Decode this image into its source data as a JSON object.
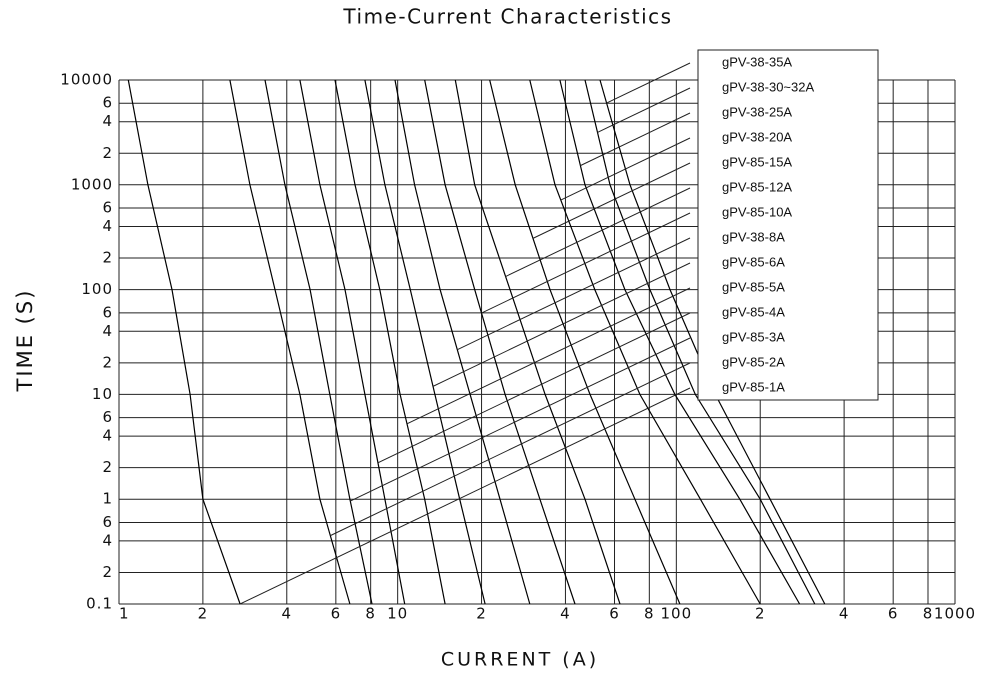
{
  "chart_data": {
    "type": "line",
    "title": "Time-Current Characteristics",
    "x_label": "CURRENT (A)",
    "y_label": "TIME (S)",
    "xscale": "log",
    "yscale": "log",
    "grid": true,
    "legend": "upper right",
    "xlim": [
      1,
      1000
    ],
    "ylim": [
      0.1,
      10000
    ],
    "xticks": [
      1,
      2,
      4,
      6,
      8,
      10,
      {
        "value": 20,
        "label": "2"
      },
      {
        "value": 40,
        "label": "4"
      },
      {
        "value": 60,
        "label": "6"
      },
      {
        "value": 80,
        "label": "8"
      },
      100,
      {
        "value": 200,
        "label": "2"
      },
      {
        "value": 400,
        "label": "4"
      },
      {
        "value": 600,
        "label": "6"
      },
      {
        "value": 800,
        "label": "8"
      },
      1000
    ],
    "yticks": [
      0.1,
      {
        "value": 0.2,
        "label": "2"
      },
      {
        "value": 0.4,
        "label": "4"
      },
      {
        "value": 0.6,
        "label": "6"
      },
      1,
      2,
      4,
      6,
      10,
      {
        "value": 20,
        "label": "2"
      },
      {
        "value": 40,
        "label": "4"
      },
      {
        "value": 60,
        "label": "6"
      },
      100,
      {
        "value": 200,
        "label": "2"
      },
      {
        "value": 400,
        "label": "4"
      },
      {
        "value": 600,
        "label": "6"
      },
      1000,
      {
        "value": 2000,
        "label": "2"
      },
      {
        "value": 4000,
        "label": "4"
      },
      {
        "value": 6000,
        "label": "6"
      },
      10000
    ],
    "series": [
      {
        "name": "gPV-38-35A",
        "color": "#000000",
        "x": [
          53.2,
          68.2,
          94.9,
          138,
          217,
          341
        ],
        "values": [
          10000,
          1000,
          100,
          10,
          1,
          0.1
        ]
      },
      {
        "name": "gPV-38-30~32A",
        "color": "#000000",
        "x": [
          47,
          57.8,
          80.4,
          117,
          200,
          314
        ],
        "values": [
          10000,
          1000,
          100,
          10,
          1,
          0.1
        ]
      },
      {
        "name": "gPV-38-25A",
        "color": "#000000",
        "x": [
          38.2,
          47,
          65.4,
          98.8,
          169,
          277
        ],
        "values": [
          10000,
          1000,
          100,
          10,
          1,
          0.1
        ]
      },
      {
        "name": "gPV-38-20A",
        "color": "#000000",
        "x": [
          29.8,
          36.7,
          51,
          74,
          122,
          200
        ],
        "values": [
          10000,
          1000,
          100,
          10,
          1,
          0.1
        ]
      },
      {
        "name": "gPV-85-15A",
        "color": "#000000",
        "x": [
          21.4,
          26.4,
          35.2,
          49,
          71,
          103
        ],
        "values": [
          10000,
          1000,
          100,
          10,
          1,
          0.1
        ]
      },
      {
        "name": "gPV-85-12A",
        "color": "#000000",
        "x": [
          16.1,
          18.9,
          25.3,
          33.8,
          47,
          62.8
        ],
        "values": [
          10000,
          1000,
          100,
          10,
          1,
          0.1
        ]
      },
      {
        "name": "gPV-85-10A",
        "color": "#000000",
        "x": [
          12.5,
          14.8,
          18.9,
          24.3,
          32.4,
          43.3
        ],
        "values": [
          10000,
          1000,
          100,
          10,
          1,
          0.1
        ]
      },
      {
        "name": "gPV-38-8A",
        "color": "#000000",
        "x": [
          9.78,
          11.5,
          14.2,
          18.2,
          23.3,
          29.8
        ],
        "values": [
          10000,
          1000,
          100,
          10,
          1,
          0.1
        ]
      },
      {
        "name": "gPV-85-6A",
        "color": "#000000",
        "x": [
          7.63,
          9.0,
          11.1,
          13.6,
          16.7,
          20.6
        ],
        "values": [
          10000,
          1000,
          100,
          10,
          1,
          0.1
        ]
      },
      {
        "name": "gPV-85-5A",
        "color": "#000000",
        "x": [
          5.96,
          7.03,
          8.63,
          10.2,
          12.5,
          14.8
        ],
        "values": [
          10000,
          1000,
          100,
          10,
          1,
          0.1
        ]
      },
      {
        "name": "gPV-85-4A",
        "color": "#000000",
        "x": [
          4.46,
          5.26,
          6.47,
          7.63,
          9.0,
          10.6
        ],
        "values": [
          10000,
          1000,
          100,
          10,
          1,
          0.1
        ]
      },
      {
        "name": "gPV-85-3A",
        "color": "#000000",
        "x": [
          3.34,
          3.94,
          4.85,
          5.71,
          6.74,
          8.09
        ],
        "values": [
          10000,
          1000,
          100,
          10,
          1,
          0.1
        ]
      },
      {
        "name": "gPV-85-2A",
        "color": "#000000",
        "x": [
          2.5,
          2.95,
          3.63,
          4.46,
          5.26,
          6.74
        ],
        "values": [
          10000,
          1000,
          100,
          10,
          1,
          0.1
        ]
      },
      {
        "name": "gPV-85-1A",
        "color": "#000000",
        "x": [
          1.08,
          1.27,
          1.55,
          1.8,
          2.0,
          2.72
        ],
        "values": [
          10000,
          1000,
          100,
          10,
          1,
          0.1
        ]
      }
    ]
  }
}
